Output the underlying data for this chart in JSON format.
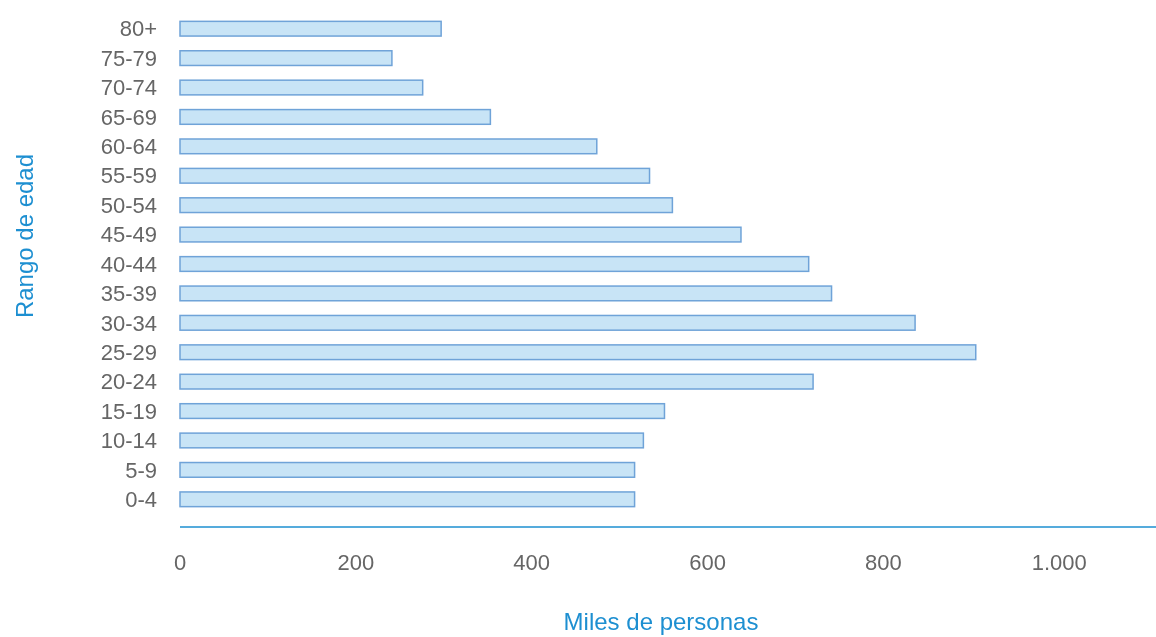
{
  "chart_data": {
    "type": "bar",
    "orientation": "horizontal",
    "xlabel": "Miles de personas",
    "ylabel": "Rango de edad",
    "categories": [
      "80+",
      "75-79",
      "70-74",
      "65-69",
      "60-64",
      "55-59",
      "50-54",
      "45-49",
      "40-44",
      "35-39",
      "30-34",
      "25-29",
      "20-24",
      "15-19",
      "10-14",
      "5-9",
      "0-4"
    ],
    "values": [
      297,
      241,
      276,
      353,
      474,
      534,
      560,
      638,
      715,
      741,
      836,
      905,
      720,
      551,
      527,
      517,
      517
    ],
    "color": "#c8e4f6",
    "xlim": [
      0,
      1110
    ],
    "xticks": [
      0,
      200,
      400,
      600,
      800,
      {
        "value": 1000,
        "label": "1.000"
      }
    ],
    "grid": false
  }
}
